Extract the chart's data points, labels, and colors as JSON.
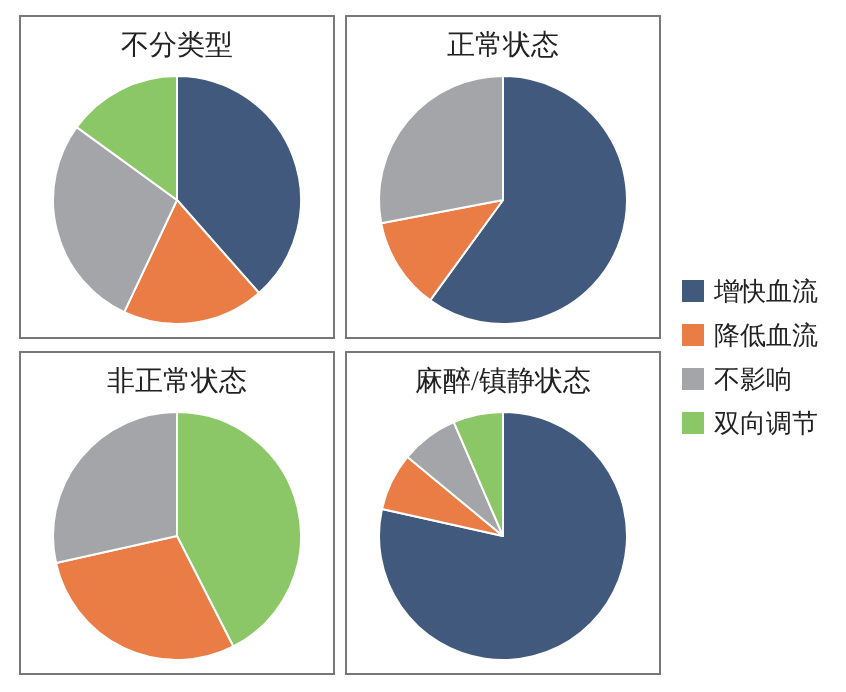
{
  "chart_data": [
    {
      "type": "pie",
      "title": "不分类型",
      "categories": [
        "增快血流",
        "降低血流",
        "不影响",
        "双向调节"
      ],
      "values": [
        38.5,
        18.5,
        28,
        15
      ],
      "colors": [
        "#41597c",
        "#e97d45",
        "#a4a5a8",
        "#8bc766"
      ],
      "legend": "right"
    },
    {
      "type": "pie",
      "title": "正常状态",
      "categories": [
        null,
        null,
        null
      ],
      "values": [
        60,
        12,
        28
      ],
      "colors": [
        "#41597c",
        "#e97d45",
        "#a4a5a8"
      ]
    },
    {
      "type": "pie",
      "title": "非正常状态",
      "categories": [
        null,
        null,
        null
      ],
      "values": [
        42.5,
        29,
        28.5
      ],
      "colors": [
        "#8bc766",
        "#e97d45",
        "#a4a5a8"
      ]
    },
    {
      "type": "pie",
      "title": "麻醉/镇静状态",
      "categories": [
        null,
        null,
        null,
        null
      ],
      "values": [
        78.5,
        7.5,
        7.5,
        6.5
      ],
      "colors": [
        "#41597c",
        "#e97d45",
        "#a4a5a8",
        "#8bc766"
      ]
    }
  ]
}
